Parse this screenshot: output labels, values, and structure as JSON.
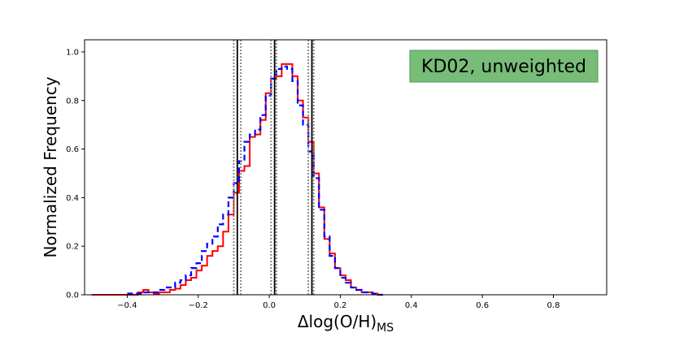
{
  "chart_data": {
    "type": "histogram",
    "xlabel_main": "Δlog(O/H)",
    "xlabel_sub": "MS",
    "ylabel": "Normalized Frequency",
    "annotation": "KD02, unweighted",
    "xlim": [
      -0.52,
      0.95
    ],
    "ylim": [
      0.0,
      1.05
    ],
    "xticks": [
      -0.4,
      -0.2,
      0.0,
      0.2,
      0.4,
      0.6,
      0.8
    ],
    "xtick_labels": [
      "−0.4",
      "−0.2",
      "0.0",
      "0.2",
      "0.4",
      "0.6",
      "0.8"
    ],
    "yticks": [
      0.0,
      0.2,
      0.4,
      0.6,
      0.8,
      1.0
    ],
    "ytick_labels": [
      "0.0",
      "0.2",
      "0.4",
      "0.6",
      "0.8",
      "1.0"
    ],
    "grid": false,
    "colors": {
      "red_series": "#ff0000",
      "blue_series": "#0000ff",
      "annotation_fill": "#77bd78",
      "annotation_border": "#4a9a50",
      "solid_lines": "#000000",
      "dotted_lines": "#808080"
    },
    "series": [
      {
        "style": "solid",
        "color": "#ff0000",
        "bins": [
          [
            -0.5,
            0.0
          ],
          [
            -0.4,
            0.0
          ],
          [
            -0.37,
            0.01
          ],
          [
            -0.355,
            0.02
          ],
          [
            -0.34,
            0.01
          ],
          [
            -0.325,
            0.005
          ],
          [
            -0.31,
            0.01
          ],
          [
            -0.295,
            0.01
          ],
          [
            -0.28,
            0.02
          ],
          [
            -0.265,
            0.025
          ],
          [
            -0.25,
            0.04
          ],
          [
            -0.235,
            0.06
          ],
          [
            -0.22,
            0.07
          ],
          [
            -0.205,
            0.1
          ],
          [
            -0.19,
            0.12
          ],
          [
            -0.175,
            0.16
          ],
          [
            -0.16,
            0.18
          ],
          [
            -0.145,
            0.2
          ],
          [
            -0.13,
            0.26
          ],
          [
            -0.115,
            0.33
          ],
          [
            -0.1,
            0.42
          ],
          [
            -0.085,
            0.51
          ],
          [
            -0.07,
            0.53
          ],
          [
            -0.055,
            0.65
          ],
          [
            -0.04,
            0.66
          ],
          [
            -0.025,
            0.72
          ],
          [
            -0.01,
            0.83
          ],
          [
            0.005,
            0.89
          ],
          [
            0.02,
            0.9
          ],
          [
            0.035,
            0.95
          ],
          [
            0.05,
            0.95
          ],
          [
            0.065,
            0.9
          ],
          [
            0.08,
            0.8
          ],
          [
            0.095,
            0.73
          ],
          [
            0.11,
            0.63
          ],
          [
            0.125,
            0.5
          ],
          [
            0.14,
            0.36
          ],
          [
            0.155,
            0.23
          ],
          [
            0.17,
            0.17
          ],
          [
            0.185,
            0.11
          ],
          [
            0.2,
            0.08
          ],
          [
            0.215,
            0.06
          ],
          [
            0.23,
            0.03
          ],
          [
            0.245,
            0.02
          ],
          [
            0.26,
            0.01
          ],
          [
            0.275,
            0.01
          ],
          [
            0.29,
            0.005
          ],
          [
            0.305,
            0.0
          ]
        ]
      },
      {
        "style": "dashed",
        "color": "#0000ff",
        "bins": [
          [
            -0.4,
            0.005
          ],
          [
            -0.37,
            0.005
          ],
          [
            -0.355,
            0.01
          ],
          [
            -0.34,
            0.01
          ],
          [
            -0.325,
            0.01
          ],
          [
            -0.31,
            0.02
          ],
          [
            -0.295,
            0.03
          ],
          [
            -0.28,
            0.03
          ],
          [
            -0.265,
            0.05
          ],
          [
            -0.25,
            0.06
          ],
          [
            -0.235,
            0.08
          ],
          [
            -0.22,
            0.11
          ],
          [
            -0.205,
            0.13
          ],
          [
            -0.19,
            0.18
          ],
          [
            -0.175,
            0.21
          ],
          [
            -0.16,
            0.24
          ],
          [
            -0.145,
            0.29
          ],
          [
            -0.13,
            0.33
          ],
          [
            -0.115,
            0.4
          ],
          [
            -0.1,
            0.46
          ],
          [
            -0.085,
            0.55
          ],
          [
            -0.07,
            0.63
          ],
          [
            -0.055,
            0.66
          ],
          [
            -0.04,
            0.68
          ],
          [
            -0.025,
            0.74
          ],
          [
            -0.01,
            0.82
          ],
          [
            0.005,
            0.89
          ],
          [
            0.02,
            0.93
          ],
          [
            0.035,
            0.94
          ],
          [
            0.05,
            0.93
          ],
          [
            0.065,
            0.88
          ],
          [
            0.08,
            0.78
          ],
          [
            0.095,
            0.7
          ],
          [
            0.11,
            0.59
          ],
          [
            0.125,
            0.48
          ],
          [
            0.14,
            0.35
          ],
          [
            0.155,
            0.24
          ],
          [
            0.17,
            0.16
          ],
          [
            0.185,
            0.11
          ],
          [
            0.2,
            0.07
          ],
          [
            0.215,
            0.05
          ],
          [
            0.23,
            0.03
          ],
          [
            0.245,
            0.02
          ],
          [
            0.26,
            0.01
          ],
          [
            0.275,
            0.01
          ],
          [
            0.29,
            0.005
          ],
          [
            0.305,
            0.0
          ]
        ]
      }
    ],
    "vlines_solid": [
      -0.09,
      0.015,
      0.12
    ],
    "vlines_dotted": [
      -0.1,
      -0.08,
      0.005,
      0.02,
      0.11,
      0.125
    ]
  }
}
